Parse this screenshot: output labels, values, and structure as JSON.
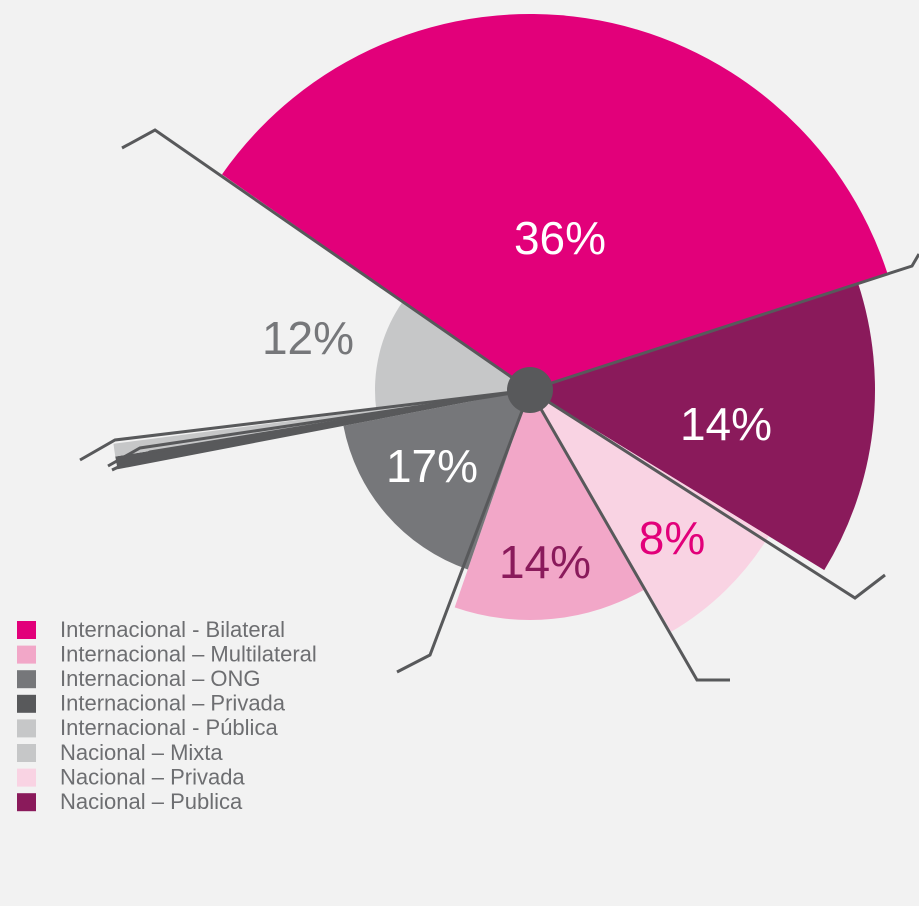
{
  "chart_data": {
    "type": "pie",
    "categories": [
      "Internacional - Bilateral",
      "Internacional – Multilateral",
      "Internacional – ONG",
      "Internacional – Privada",
      "Internacional - Pública",
      "Nacional – Mixta",
      "Nacional – Privada",
      "Nacional – Publica"
    ],
    "values": [
      36,
      14,
      17,
      0.5,
      0.5,
      12,
      8,
      14
    ],
    "value_labels": [
      "36%",
      "14%",
      "17%",
      null,
      null,
      "12%",
      "8%",
      "14%"
    ],
    "colors": [
      "#e2007a",
      "#f2a7c8",
      "#76777a",
      "#58595b",
      "#c6c7c8",
      "#c6c7c8",
      "#f9d3e3",
      "#8a1a5b"
    ]
  }
}
